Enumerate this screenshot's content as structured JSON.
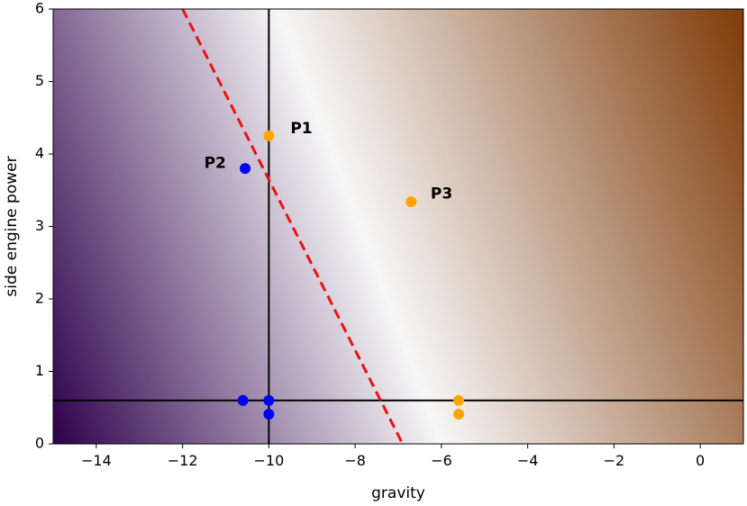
{
  "chart_data": {
    "type": "scatter",
    "title": "",
    "xlabel": "gravity",
    "ylabel": "side engine power",
    "xlim": [
      -15,
      1
    ],
    "ylim": [
      0,
      6
    ],
    "xticks": [
      -14,
      -12,
      -10,
      -8,
      -6,
      -4,
      -2,
      0
    ],
    "yticks": [
      0,
      1,
      2,
      3,
      4,
      5,
      6
    ],
    "xtick_labels": [
      "−14",
      "−12",
      "−10",
      "−8",
      "−6",
      "−4",
      "−2",
      "0"
    ],
    "ytick_labels": [
      "0",
      "1",
      "2",
      "3",
      "4",
      "5",
      "6"
    ],
    "grid": false,
    "background": {
      "type": "heatmap",
      "colormap": "PuOr_r",
      "colors": {
        "low": "#2d004b",
        "mid": "#f7f7f7",
        "high": "#7f3b08"
      },
      "midline_point_a": [
        -9.8,
        6
      ],
      "midline_point_b": [
        -6.0,
        0
      ]
    },
    "reference_lines": [
      {
        "orientation": "vertical",
        "x": -10,
        "color": "#000000"
      },
      {
        "orientation": "horizontal",
        "y": 0.6,
        "color": "#000000"
      }
    ],
    "boundary": {
      "x": [
        -12.0,
        -6.9
      ],
      "y": [
        6.0,
        0.0
      ],
      "color": "#ee1111",
      "style": "dashed"
    },
    "series": [
      {
        "color": "#0000ff",
        "points": [
          [
            -10.55,
            3.8
          ],
          [
            -10.6,
            0.6
          ],
          [
            -10.0,
            0.6
          ],
          [
            -10.0,
            0.41
          ]
        ]
      },
      {
        "color": "#ffa500",
        "points": [
          [
            -10.0,
            4.25
          ],
          [
            -6.7,
            3.34
          ],
          [
            -5.6,
            0.6
          ],
          [
            -5.6,
            0.41
          ]
        ]
      }
    ],
    "annotations": [
      {
        "text": "P1",
        "x": -9.5,
        "y": 4.35
      },
      {
        "text": "P2",
        "x": -11.5,
        "y": 3.87
      },
      {
        "text": "P3",
        "x": -6.25,
        "y": 3.45
      }
    ]
  }
}
